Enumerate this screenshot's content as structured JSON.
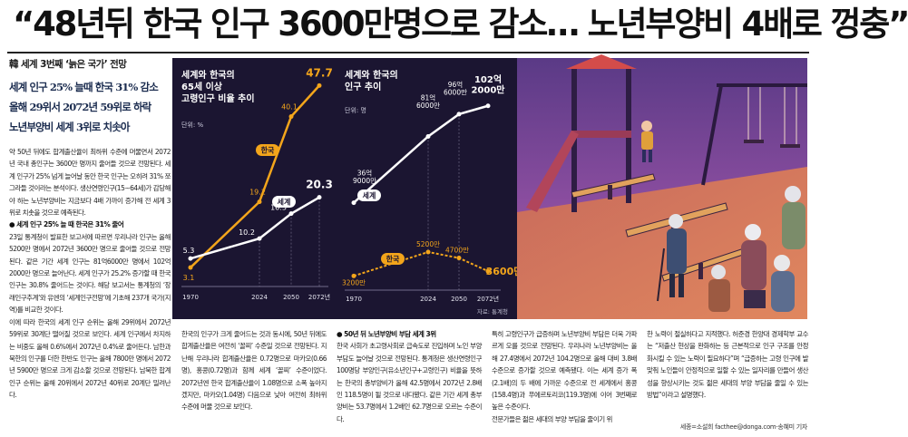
{
  "headline": "“48년뒤 한국 인구 3600만명으로 감소… 노년부양비 4배로 껑충”",
  "lead": {
    "kicker": "韓 세계 3번째 ‘늙은 국가’ 전망",
    "subheads": [
      "세계 인구 25% 늘때 한국 31% 감소",
      "올해 29위서 2072년 59위로 하락",
      "노년부양비 세계 3위로 치솟아"
    ],
    "paragraphs": [
      "약 50년 뒤에도 합계출산율이 최하위 수준에 머물면서 2072년 국내 총인구는 3600만 명까지 줄어들 것으로 전망된다. 세계 인구가 25% 넘게 늘어날 동안 한국 인구는 오히려 31% 쪼그라들 것이라는 분석이다. 생산연령인구(15∼64세)가 감당해야 하는 노년부양비는 지금보다 4배 가까이 증가해 전 세계 3위로 치솟을 것으로 예측된다.",
      "● 세계 인구 25% 늘 때 한국은 31% 줄어",
      "23일 통계청이 발표한 보고서에 따르면 우리나라 인구는 올해 5200만 명에서 2072년 3600만 명으로 줄어들 것으로 전망된다. 같은 기간 세계 인구는 81억6000만 명에서 102억2000만 명으로 늘어난다. 세계 인구가 25.2% 증가할 때 한국 인구는 30.8% 줄어드는 것이다. 해당 보고서는 통계청의 ‘장래인구추계’와 유엔의 ‘세계인구전망’에 기초해 237개 국가(지역)를 비교한 것이다.",
      "이에 따라 한국의 세계 인구 순위는 올해 29위에서 2072년 59위로 30계단 떨어질 것으로 보인다. 세계 인구에서 차지하는 비중도 올해 0.6%에서 2072년 0.4%로 줄어든다. 남한과 북한의 인구를 더한 한반도 인구는 올해 7800만 명에서 2072년 5900만 명으로 크게 감소할 것으로 전망된다. 남북한 합계 인구 순위는 올해 20위에서 2072년 40위로 20계단 밀려난다."
    ]
  },
  "chart_data": [
    {
      "type": "line",
      "title": "세계와 한국의 65세 이상 고령인구 비율 추이",
      "unit_label": "단위: %",
      "x": [
        "1970",
        "2024",
        "2050",
        "2072년"
      ],
      "series": [
        {
          "name": "한국",
          "values": [
            3.1,
            19.2,
            40.1,
            47.7
          ]
        },
        {
          "name": "세계",
          "values": [
            5.3,
            10.2,
            16.3,
            20.3
          ]
        }
      ],
      "labels": {
        "korea": [
          "3.1",
          "19.2",
          "40.1",
          "47.7"
        ],
        "world": [
          "5.3",
          "10.2",
          "16.3",
          "20.3"
        ]
      },
      "accent": "#f3a51b",
      "secondary": "#ffffff"
    },
    {
      "type": "line",
      "title": "세계와 한국의 인구 추이",
      "unit_label": "단위: 명",
      "x": [
        "1970",
        "2024",
        "2050",
        "2072년"
      ],
      "series": [
        {
          "name": "세계",
          "values": [
            36.9,
            81.6,
            96.6,
            102.2
          ],
          "unit": "억"
        },
        {
          "name": "한국",
          "values": [
            3200,
            5200,
            4700,
            3600
          ],
          "unit": "만"
        }
      ],
      "labels": {
        "world": [
          "36억\n9000만",
          "81억\n6000만",
          "96억\n6000만",
          "102억\n2000만"
        ],
        "korea": [
          "3200만",
          "5200만",
          "4700만",
          "3600만"
        ]
      },
      "source": "자료: 통계청",
      "accent": "#f3a51b",
      "secondary": "#ffffff"
    }
  ],
  "columns": [
    {
      "paragraphs": [
        "한국의 인구가 크게 줄어드는 것과 동시에, 50년 뒤에도 합계출산율은 여전히 ‘꼴찌’ 수준일 것으로 전망된다. 지난해 우리나라 합계출산율은 0.72명으로 마카오(0.66명), 홍콩(0.72명)과 함께 세계 ‘꼴찌’ 수준이었다. 2072년엔 한국 합계출산율이 1.08명으로 소폭 높아지겠지만, 마카오(1.04명) 다음으로 낮아 여전히 최하위 수준에 머물 것으로 보인다."
      ]
    },
    {
      "paragraphs": [
        "● 50년 뒤 노년부양비 부담 세계 3위",
        "한국 사회가 초고령사회로 급속도로 진입하며 노인 부양 부담도 늘어날 것으로 전망된다. 통계청은 생산연령인구 100명당 부양인구(유소년인구+고령인구) 비율을 뜻하는 한국의 총부양비가 올해 42.5명에서 2072년 2.8배인 118.5명이 될 것으로 내다봤다. 같은 기간 세계 총부양비는 53.7명에서 1.2배인 62.7명으로 오르는 수준이다."
      ]
    },
    {
      "paragraphs": [
        "특히 고령인구가 급증하며 노년부양비 부담은 더욱 가파르게 오를 것으로 전망된다. 우리나라 노년부양비는 올해 27.4명에서 2072년 104.2명으로 올해 대비 3.8배 수준으로 증가할 것으로 예측됐다. 이는 세계 증가 폭(2.1배)의 두 배에 가까운 수준으로 전 세계에서 홍콩(158.4명)과 푸에르토리코(119.3명)에 이어 3번째로 높은 수준이다.",
        "전문가들은 젊은 세대의 부양 부담을 줄이기 위"
      ]
    },
    {
      "paragraphs": [
        "한 노력이 절실하다고 지적했다. 허준경 한양대 경제학부 교수는 “저출산 현상을 완화하는 등 근본적으로 인구 구조를 안정화시킬 수 있는 노력이 필요하다”며 “급증하는 고령 인구에 발맞춰 노인들이 안정적으로 일할 수 있는 일자리를 만들어 생산성을 향상시키는 것도 젊은 세대의 부양 부담을 줄일 수 있는 방법”이라고 설명했다."
      ]
    }
  ],
  "credit": "세종=소설희 facthee@donga.com·송혜미 기자"
}
